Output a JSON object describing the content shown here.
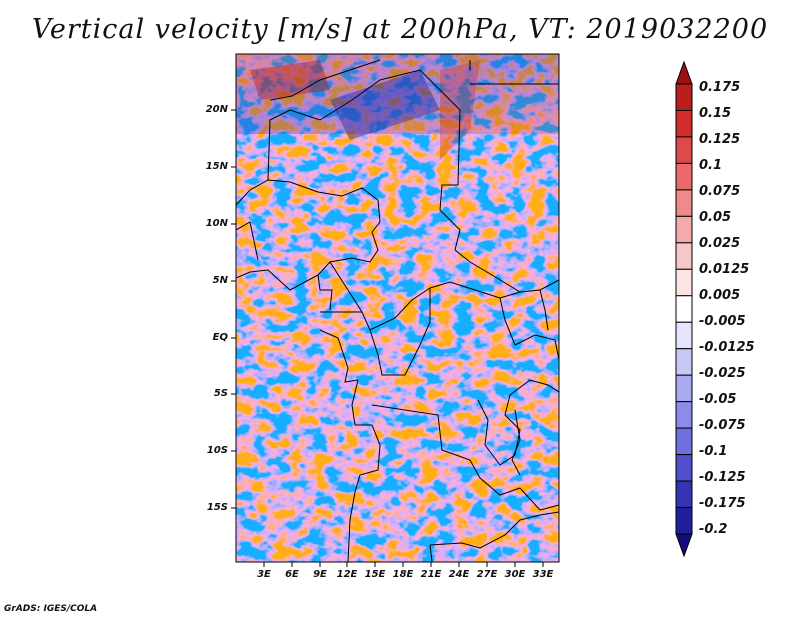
{
  "title": "Vertical velocity [m/s] at 200hPa, VT: 2019032200",
  "footer": "GrADS: IGES/COLA",
  "axes": {
    "lat_labels": [
      "20N",
      "15N",
      "10N",
      "5N",
      "EQ",
      "5S",
      "10S",
      "15S"
    ],
    "lat_values": [
      20,
      15,
      10,
      5,
      0,
      -5,
      -10,
      -15
    ],
    "lon_labels": [
      "3E",
      "6E",
      "9E",
      "12E",
      "15E",
      "18E",
      "21E",
      "24E",
      "27E",
      "30E",
      "33E"
    ],
    "lon_values": [
      3,
      6,
      9,
      12,
      15,
      18,
      21,
      24,
      27,
      30,
      33
    ],
    "lat_range": [
      -20,
      25
    ],
    "lon_range": [
      0,
      35
    ]
  },
  "colorbar": {
    "labels": [
      "0.175",
      "0.15",
      "0.125",
      "0.1",
      "0.075",
      "0.05",
      "0.025",
      "0.0125",
      "0.005",
      "-0.005",
      "-0.0125",
      "-0.025",
      "-0.05",
      "-0.075",
      "-0.1",
      "-0.125",
      "-0.175",
      "-0.2"
    ],
    "colors": [
      "#a01010",
      "#bc1e1e",
      "#d02d2d",
      "#de4a4a",
      "#e86a6a",
      "#ef8a8a",
      "#f4aaaa",
      "#f8c8c8",
      "#fce4e4",
      "#ffffff",
      "#e4e4fc",
      "#c8c8f6",
      "#aaaaf0",
      "#8c8ce8",
      "#6e6edc",
      "#5050cc",
      "#3434b4",
      "#20209c",
      "#140c80"
    ]
  },
  "chart_data": {
    "type": "heatmap",
    "title": "Vertical velocity [m/s] at 200hPa, VT: 2019032200",
    "variable": "Vertical velocity",
    "units": "m/s",
    "level": "200hPa",
    "valid_time": "2019032200",
    "lon_range": [
      0,
      35
    ],
    "lat_range": [
      -20,
      25
    ],
    "contour_levels": [
      -0.2,
      -0.175,
      -0.125,
      -0.1,
      -0.075,
      -0.05,
      -0.025,
      -0.0125,
      -0.005,
      0.005,
      0.0125,
      0.025,
      0.05,
      0.075,
      0.1,
      0.125,
      0.15,
      0.175
    ]
  }
}
